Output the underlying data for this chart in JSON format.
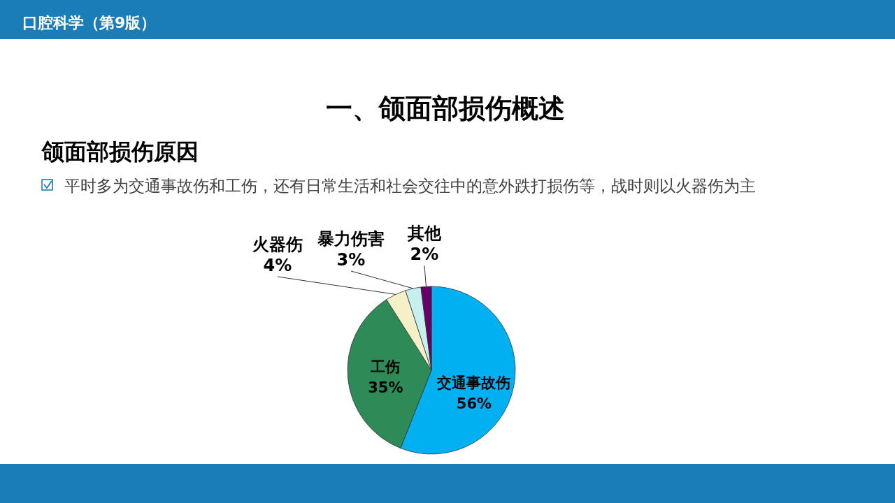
{
  "chart_data": {
    "type": "pie",
    "title": "一、颌面部损伤概述",
    "subtitle": "颌面部损伤原因",
    "annotations": [
      "口腔科学（第9版）",
      "平时多为交通事故伤和工伤，还有日常生活和社会交往中的意外跌打损伤等，战时则以火器伤为主"
    ],
    "categories": [
      "交通事故伤",
      "工伤",
      "火器伤",
      "暴力伤害",
      "其他"
    ],
    "values": [
      56,
      35,
      4,
      3,
      2
    ],
    "value_labels": [
      "56%",
      "35%",
      "4%",
      "3%",
      "2%"
    ],
    "colors": [
      "#00b0f0",
      "#2e8b57",
      "#f5f0c8",
      "#c6eff0",
      "#660066"
    ]
  }
}
